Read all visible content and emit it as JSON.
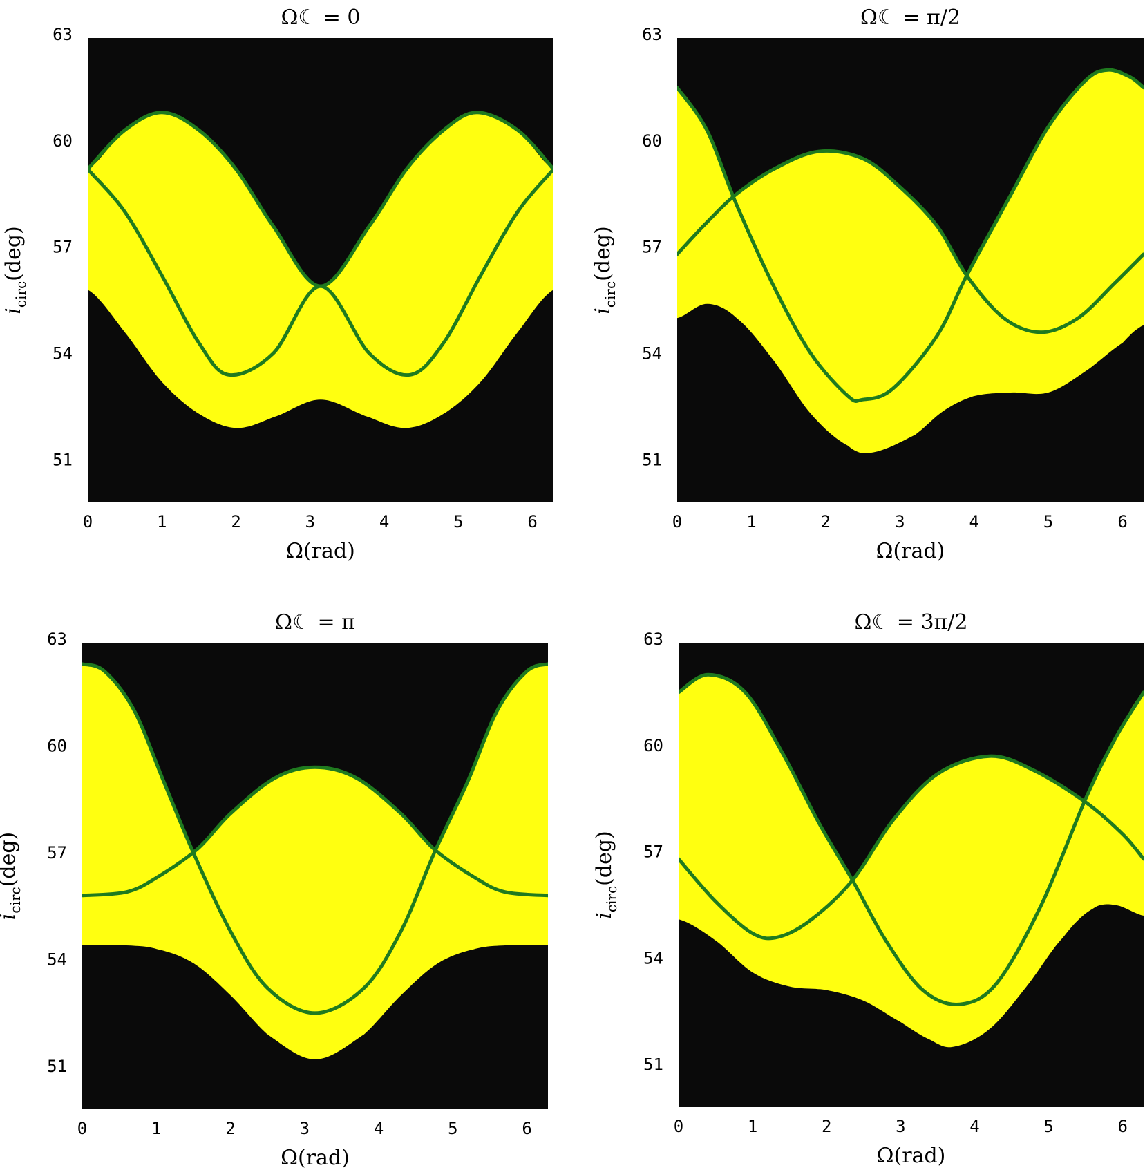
{
  "chart_data": [
    {
      "type": "area",
      "title": "Ω☾ = 0",
      "xlabel": "Ω(rad)",
      "ylabel": "i_circ(deg)",
      "xlim": [
        0,
        6.283
      ],
      "ylim": [
        49.8,
        62.9
      ],
      "xticks": [
        0,
        1,
        2,
        3,
        4,
        5,
        6
      ],
      "yticks": [
        51,
        54,
        57,
        60,
        63
      ],
      "background": "#0a0a0a",
      "region_color": "#ffff10",
      "curve_color": "#1f7a1f",
      "region_lower": [
        [
          0,
          55.8
        ],
        [
          0.5,
          54.6
        ],
        [
          1.0,
          53.2
        ],
        [
          1.5,
          52.3
        ],
        [
          2.0,
          51.9
        ],
        [
          2.5,
          52.2
        ],
        [
          3.14,
          52.7
        ],
        [
          3.8,
          52.2
        ],
        [
          4.3,
          51.9
        ],
        [
          4.8,
          52.3
        ],
        [
          5.3,
          53.2
        ],
        [
          5.8,
          54.6
        ],
        [
          6.283,
          55.8
        ]
      ],
      "series": [
        {
          "values": [
            [
              0,
              59.2
            ],
            [
              0.5,
              60.3
            ],
            [
              1.0,
              60.8
            ],
            [
              1.5,
              60.3
            ],
            [
              2.0,
              59.2
            ],
            [
              2.5,
              57.6
            ],
            [
              3.14,
              55.9
            ],
            [
              3.8,
              57.6
            ],
            [
              4.3,
              59.2
            ],
            [
              4.8,
              60.3
            ],
            [
              5.25,
              60.8
            ],
            [
              5.8,
              60.3
            ],
            [
              6.283,
              59.2
            ]
          ]
        },
        {
          "values": [
            [
              0,
              59.2
            ],
            [
              0.5,
              58.0
            ],
            [
              1.0,
              56.2
            ],
            [
              1.5,
              54.3
            ],
            [
              1.9,
              53.4
            ],
            [
              2.5,
              54.0
            ],
            [
              3.14,
              55.9
            ],
            [
              3.8,
              54.0
            ],
            [
              4.35,
              53.4
            ],
            [
              4.8,
              54.3
            ],
            [
              5.3,
              56.2
            ],
            [
              5.8,
              58.0
            ],
            [
              6.283,
              59.2
            ]
          ]
        }
      ]
    },
    {
      "type": "area",
      "title": "Ω☾ = π/2",
      "xlabel": "Ω(rad)",
      "ylabel": "i_circ(deg)",
      "xlim": [
        0,
        6.283
      ],
      "ylim": [
        49.8,
        62.9
      ],
      "xticks": [
        0,
        1,
        2,
        3,
        4,
        5,
        6
      ],
      "yticks": [
        51,
        54,
        57,
        60,
        63
      ],
      "background": "#0a0a0a",
      "region_color": "#ffff10",
      "curve_color": "#1f7a1f",
      "region_lower": [
        [
          0,
          55.0
        ],
        [
          0.4,
          55.4
        ],
        [
          0.8,
          55.0
        ],
        [
          1.3,
          53.8
        ],
        [
          1.8,
          52.3
        ],
        [
          2.3,
          51.4
        ],
        [
          2.6,
          51.2
        ],
        [
          3.2,
          51.7
        ],
        [
          3.6,
          52.4
        ],
        [
          4.0,
          52.8
        ],
        [
          4.5,
          52.9
        ],
        [
          5.0,
          52.9
        ],
        [
          5.5,
          53.5
        ],
        [
          6.0,
          54.3
        ],
        [
          6.283,
          54.8
        ]
      ],
      "series": [
        {
          "values": [
            [
              0,
              61.5
            ],
            [
              0.4,
              60.3
            ],
            [
              0.8,
              58.2
            ],
            [
              1.3,
              55.9
            ],
            [
              1.8,
              54.0
            ],
            [
              2.3,
              52.8
            ],
            [
              2.5,
              52.7
            ],
            [
              2.9,
              53.0
            ],
            [
              3.5,
              54.5
            ],
            [
              3.9,
              56.2
            ],
            [
              4.5,
              58.5
            ],
            [
              5.0,
              60.4
            ],
            [
              5.5,
              61.7
            ],
            [
              5.8,
              62.0
            ],
            [
              6.1,
              61.8
            ],
            [
              6.283,
              61.5
            ]
          ]
        },
        {
          "values": [
            [
              0,
              56.8
            ],
            [
              0.4,
              57.7
            ],
            [
              0.8,
              58.5
            ],
            [
              1.3,
              59.2
            ],
            [
              1.9,
              59.7
            ],
            [
              2.5,
              59.5
            ],
            [
              3.0,
              58.7
            ],
            [
              3.5,
              57.6
            ],
            [
              3.9,
              56.2
            ],
            [
              4.4,
              55.0
            ],
            [
              4.9,
              54.6
            ],
            [
              5.4,
              55.0
            ],
            [
              5.9,
              56.0
            ],
            [
              6.283,
              56.8
            ]
          ]
        }
      ]
    },
    {
      "type": "area",
      "title": "Ω☾ = π",
      "xlabel": "Ω(rad)",
      "ylabel": "i_circ(deg)",
      "xlim": [
        0,
        6.283
      ],
      "ylim": [
        49.8,
        62.9
      ],
      "xticks": [
        0,
        1,
        2,
        3,
        4,
        5,
        6
      ],
      "yticks": [
        51,
        54,
        57,
        60,
        63
      ],
      "background": "#0a0a0a",
      "region_color": "#ffff10",
      "curve_color": "#1f7a1f",
      "region_lower": [
        [
          0,
          54.4
        ],
        [
          0.6,
          54.4
        ],
        [
          1.0,
          54.3
        ],
        [
          1.5,
          53.9
        ],
        [
          2.0,
          53.0
        ],
        [
          2.5,
          51.9
        ],
        [
          3.14,
          51.2
        ],
        [
          3.8,
          51.9
        ],
        [
          4.3,
          53.0
        ],
        [
          4.8,
          53.9
        ],
        [
          5.3,
          54.3
        ],
        [
          5.7,
          54.4
        ],
        [
          6.283,
          54.4
        ]
      ],
      "series": [
        {
          "values": [
            [
              0,
              62.3
            ],
            [
              0.3,
              62.1
            ],
            [
              0.7,
              61.0
            ],
            [
              1.1,
              59.0
            ],
            [
              1.5,
              57.0
            ],
            [
              2.0,
              54.8
            ],
            [
              2.5,
              53.2
            ],
            [
              3.14,
              52.5
            ],
            [
              3.8,
              53.2
            ],
            [
              4.3,
              54.8
            ],
            [
              4.75,
              57.0
            ],
            [
              5.2,
              59.0
            ],
            [
              5.6,
              61.0
            ],
            [
              6.0,
              62.1
            ],
            [
              6.283,
              62.3
            ]
          ]
        },
        {
          "values": [
            [
              0,
              55.8
            ],
            [
              0.6,
              55.9
            ],
            [
              1.0,
              56.3
            ],
            [
              1.55,
              57.1
            ],
            [
              2.0,
              58.1
            ],
            [
              2.6,
              59.1
            ],
            [
              3.14,
              59.4
            ],
            [
              3.7,
              59.1
            ],
            [
              4.3,
              58.1
            ],
            [
              4.75,
              57.1
            ],
            [
              5.3,
              56.3
            ],
            [
              5.7,
              55.9
            ],
            [
              6.283,
              55.8
            ]
          ]
        }
      ]
    },
    {
      "type": "area",
      "title": "Ω☾ = 3π/2",
      "xlabel": "Ω(rad)",
      "ylabel": "i_circ(deg)",
      "xlim": [
        0,
        6.283
      ],
      "ylim": [
        49.8,
        62.9
      ],
      "xticks": [
        0,
        1,
        2,
        3,
        4,
        5,
        6
      ],
      "yticks": [
        51,
        54,
        57,
        60,
        63
      ],
      "background": "#0a0a0a",
      "region_color": "#ffff10",
      "curve_color": "#1f7a1f",
      "region_lower": [
        [
          0,
          55.1
        ],
        [
          0.5,
          54.5
        ],
        [
          1.0,
          53.6
        ],
        [
          1.5,
          53.2
        ],
        [
          2.0,
          53.1
        ],
        [
          2.5,
          52.8
        ],
        [
          3.0,
          52.2
        ],
        [
          3.4,
          51.7
        ],
        [
          3.7,
          51.5
        ],
        [
          4.2,
          52.0
        ],
        [
          4.7,
          53.2
        ],
        [
          5.2,
          54.6
        ],
        [
          5.6,
          55.4
        ],
        [
          5.9,
          55.5
        ],
        [
          6.283,
          55.2
        ]
      ],
      "series": [
        {
          "values": [
            [
              0,
              61.5
            ],
            [
              0.4,
              62.0
            ],
            [
              0.9,
              61.5
            ],
            [
              1.4,
              59.8
            ],
            [
              1.9,
              57.8
            ],
            [
              2.35,
              56.2
            ],
            [
              2.8,
              54.5
            ],
            [
              3.3,
              53.1
            ],
            [
              3.8,
              52.7
            ],
            [
              4.3,
              53.3
            ],
            [
              4.9,
              55.5
            ],
            [
              5.5,
              58.5
            ],
            [
              5.9,
              60.2
            ],
            [
              6.283,
              61.5
            ]
          ]
        },
        {
          "values": [
            [
              0,
              56.8
            ],
            [
              0.5,
              55.6
            ],
            [
              1.0,
              54.7
            ],
            [
              1.35,
              54.6
            ],
            [
              1.8,
              55.1
            ],
            [
              2.35,
              56.2
            ],
            [
              2.9,
              57.9
            ],
            [
              3.5,
              59.2
            ],
            [
              4.2,
              59.7
            ],
            [
              4.8,
              59.3
            ],
            [
              5.5,
              58.4
            ],
            [
              6.0,
              57.5
            ],
            [
              6.283,
              56.8
            ]
          ]
        }
      ]
    }
  ]
}
